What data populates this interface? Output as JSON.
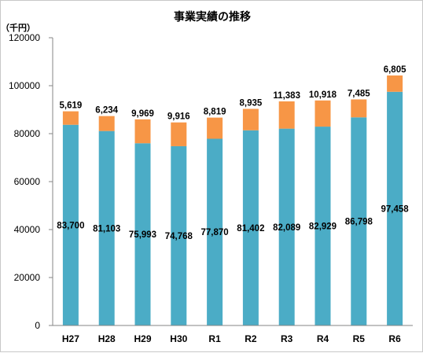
{
  "chart_data": {
    "type": "bar",
    "stacked": true,
    "title": "事業実績の推移",
    "unit_label": "（千円）",
    "categories": [
      "H27",
      "H28",
      "H29",
      "H30",
      "R1",
      "R2",
      "R3",
      "R4",
      "R5",
      "R6"
    ],
    "series": [
      {
        "color": "#4BACC6",
        "values": [
          83700,
          81103,
          75993,
          74768,
          77870,
          81402,
          82089,
          82929,
          86798,
          97458
        ],
        "labels": [
          "83,700",
          "81,103",
          "75,993",
          "74,768",
          "77,870",
          "81,402",
          "82,089",
          "82,929",
          "86,798",
          "97,458"
        ]
      },
      {
        "color": "#F79646",
        "values": [
          5619,
          6234,
          9969,
          9916,
          8819,
          8935,
          11383,
          10918,
          7485,
          6805
        ],
        "labels": [
          "5,619",
          "6,234",
          "9,969",
          "9,916",
          "8,819",
          "8,935",
          "11,383",
          "10,918",
          "7,485",
          "6,805"
        ]
      }
    ],
    "ylim": [
      0,
      120000
    ],
    "yticks": [
      0,
      20000,
      40000,
      60000,
      80000,
      100000,
      120000
    ],
    "ytick_labels": [
      "0",
      "20000",
      "40000",
      "60000",
      "80000",
      "100000",
      "120000"
    ],
    "grid": false,
    "legend": "none"
  }
}
